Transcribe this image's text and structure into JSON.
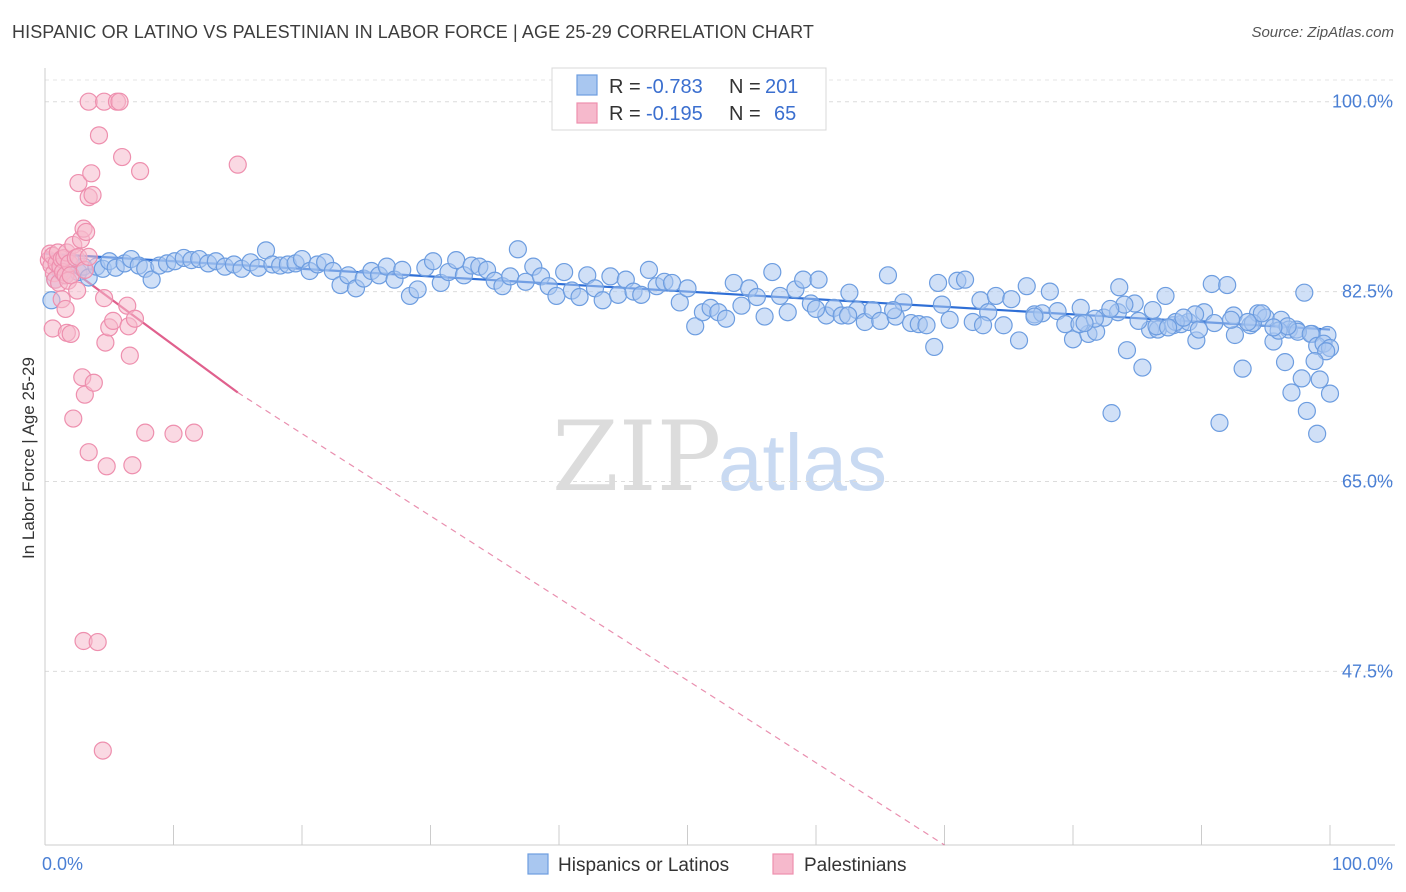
{
  "header": {
    "title": "HISPANIC OR LATINO VS PALESTINIAN IN LABOR FORCE | AGE 25-29 CORRELATION CHART",
    "source": "Source: ZipAtlas.com"
  },
  "watermark": {
    "zip": "ZIP",
    "atlas": "atlas"
  },
  "colors": {
    "blue_fill": "#a9c7f0",
    "blue_stroke": "#6d9de0",
    "blue_line": "#2f6fd6",
    "pink_fill": "#f6b9cc",
    "pink_stroke": "#ee8fae",
    "pink_line": "#e0608d"
  },
  "chart_data": {
    "type": "scatter",
    "title": "HISPANIC OR LATINO VS PALESTINIAN IN LABOR FORCE | AGE 25-29 CORRELATION CHART",
    "xlabel": "",
    "ylabel": "In Labor Force | Age 25-29",
    "xlim": [
      0,
      100
    ],
    "ylim": [
      31.5,
      102
    ],
    "x_tick_labels": [
      "0.0%",
      "100.0%"
    ],
    "y_ticks": [
      47.5,
      65.0,
      82.5,
      100.0
    ],
    "y_tick_labels": [
      "47.5%",
      "65.0%",
      "82.5%",
      "100.0%"
    ],
    "grid": true,
    "legend": {
      "placement": "top-center",
      "rows": [
        {
          "r_label": "R =",
          "r_value": "-0.783",
          "n_label": "N =",
          "n_value": "201"
        },
        {
          "r_label": "R =",
          "r_value": "-0.195",
          "n_label": "N =",
          "n_value": "65"
        }
      ]
    },
    "series": [
      {
        "name": "Hispanics or Latinos",
        "color": "#a9c7f0",
        "trend": {
          "x": [
            0,
            100
          ],
          "y": [
            86.0,
            79.0
          ]
        },
        "points": [
          [
            0.5,
            81.7
          ],
          [
            0.8,
            83.6
          ],
          [
            1.2,
            84.4
          ],
          [
            1.6,
            84.0
          ],
          [
            2.0,
            85.3
          ],
          [
            2.6,
            84.3
          ],
          [
            3.0,
            84.8
          ],
          [
            3.4,
            83.8
          ],
          [
            4.0,
            84.8
          ],
          [
            4.5,
            84.6
          ],
          [
            5.0,
            85.3
          ],
          [
            5.5,
            84.7
          ],
          [
            6.2,
            85.1
          ],
          [
            6.7,
            85.5
          ],
          [
            7.3,
            84.9
          ],
          [
            7.8,
            84.6
          ],
          [
            8.3,
            83.6
          ],
          [
            8.9,
            84.9
          ],
          [
            9.5,
            85.1
          ],
          [
            10.1,
            85.3
          ],
          [
            10.8,
            85.6
          ],
          [
            11.4,
            85.4
          ],
          [
            12.0,
            85.5
          ],
          [
            12.7,
            85.1
          ],
          [
            13.3,
            85.3
          ],
          [
            14.0,
            84.8
          ],
          [
            14.7,
            85.0
          ],
          [
            15.3,
            84.6
          ],
          [
            16.0,
            85.2
          ],
          [
            16.6,
            84.7
          ],
          [
            17.2,
            86.3
          ],
          [
            17.7,
            85.0
          ],
          [
            18.3,
            84.9
          ],
          [
            18.9,
            85.0
          ],
          [
            19.5,
            85.1
          ],
          [
            20.0,
            85.5
          ],
          [
            20.6,
            84.4
          ],
          [
            21.2,
            85.0
          ],
          [
            21.8,
            85.2
          ],
          [
            22.4,
            84.4
          ],
          [
            23.0,
            83.1
          ],
          [
            23.6,
            84.0
          ],
          [
            24.2,
            82.8
          ],
          [
            24.8,
            83.7
          ],
          [
            25.4,
            84.4
          ],
          [
            26.0,
            84.0
          ],
          [
            26.6,
            84.8
          ],
          [
            27.2,
            83.6
          ],
          [
            27.8,
            84.5
          ],
          [
            28.4,
            82.1
          ],
          [
            29.0,
            82.7
          ],
          [
            29.6,
            84.7
          ],
          [
            30.2,
            85.3
          ],
          [
            30.8,
            83.3
          ],
          [
            31.4,
            84.3
          ],
          [
            32.0,
            85.4
          ],
          [
            32.6,
            84.0
          ],
          [
            33.2,
            84.9
          ],
          [
            33.8,
            84.8
          ],
          [
            34.4,
            84.5
          ],
          [
            35.0,
            83.5
          ],
          [
            35.6,
            83.0
          ],
          [
            36.2,
            83.9
          ],
          [
            36.8,
            86.4
          ],
          [
            37.4,
            83.4
          ],
          [
            38.0,
            84.8
          ],
          [
            38.6,
            83.9
          ],
          [
            39.2,
            83.0
          ],
          [
            39.8,
            82.1
          ],
          [
            40.4,
            84.3
          ],
          [
            41.0,
            82.6
          ],
          [
            41.6,
            82.0
          ],
          [
            42.2,
            84.0
          ],
          [
            42.8,
            82.8
          ],
          [
            43.4,
            81.7
          ],
          [
            44.0,
            83.9
          ],
          [
            44.6,
            82.2
          ],
          [
            45.2,
            83.6
          ],
          [
            45.8,
            82.5
          ],
          [
            46.4,
            82.2
          ],
          [
            47.0,
            84.5
          ],
          [
            47.6,
            83.0
          ],
          [
            48.2,
            83.4
          ],
          [
            48.8,
            83.3
          ],
          [
            49.4,
            81.5
          ],
          [
            50.0,
            82.8
          ],
          [
            50.6,
            79.3
          ],
          [
            51.2,
            80.6
          ],
          [
            51.8,
            81.0
          ],
          [
            52.4,
            80.6
          ],
          [
            53.0,
            80.0
          ],
          [
            53.6,
            83.3
          ],
          [
            54.2,
            81.2
          ],
          [
            54.8,
            82.8
          ],
          [
            55.4,
            82.0
          ],
          [
            56.0,
            80.2
          ],
          [
            56.6,
            84.3
          ],
          [
            57.2,
            82.1
          ],
          [
            57.8,
            80.6
          ],
          [
            58.4,
            82.7
          ],
          [
            59.0,
            83.6
          ],
          [
            59.6,
            81.4
          ],
          [
            60.2,
            83.6
          ],
          [
            60.8,
            80.3
          ],
          [
            61.4,
            81.0
          ],
          [
            62.0,
            80.3
          ],
          [
            62.6,
            82.4
          ],
          [
            63.2,
            80.8
          ],
          [
            63.8,
            79.7
          ],
          [
            64.4,
            80.8
          ],
          [
            65.0,
            79.8
          ],
          [
            65.6,
            84.0
          ],
          [
            66.2,
            80.2
          ],
          [
            66.8,
            81.5
          ],
          [
            67.4,
            79.6
          ],
          [
            68.0,
            79.5
          ],
          [
            68.6,
            79.4
          ],
          [
            69.2,
            77.4
          ],
          [
            69.8,
            81.3
          ],
          [
            70.4,
            79.9
          ],
          [
            71.0,
            83.5
          ],
          [
            71.6,
            83.6
          ],
          [
            72.2,
            79.7
          ],
          [
            72.8,
            81.7
          ],
          [
            73.4,
            80.6
          ],
          [
            74.0,
            82.1
          ],
          [
            74.6,
            79.4
          ],
          [
            75.2,
            81.8
          ],
          [
            75.8,
            78.0
          ],
          [
            76.4,
            83.0
          ],
          [
            77.0,
            80.4
          ],
          [
            77.6,
            80.5
          ],
          [
            78.2,
            82.5
          ],
          [
            78.8,
            80.7
          ],
          [
            79.4,
            79.5
          ],
          [
            80.0,
            78.1
          ],
          [
            80.6,
            81.0
          ],
          [
            81.2,
            78.6
          ],
          [
            81.8,
            78.8
          ],
          [
            82.4,
            80.1
          ],
          [
            83.0,
            71.3
          ],
          [
            83.6,
            82.9
          ],
          [
            84.2,
            77.1
          ],
          [
            84.8,
            81.4
          ],
          [
            85.4,
            75.5
          ],
          [
            86.0,
            79.0
          ],
          [
            86.6,
            79.0
          ],
          [
            87.2,
            82.1
          ],
          [
            87.8,
            79.4
          ],
          [
            88.4,
            79.5
          ],
          [
            89.0,
            79.7
          ],
          [
            89.6,
            78.0
          ],
          [
            90.2,
            80.6
          ],
          [
            90.8,
            83.2
          ],
          [
            91.4,
            70.4
          ],
          [
            92.0,
            83.1
          ],
          [
            92.6,
            78.5
          ],
          [
            93.2,
            75.4
          ],
          [
            93.8,
            79.4
          ],
          [
            94.4,
            80.5
          ],
          [
            95.0,
            80.1
          ],
          [
            95.6,
            77.9
          ],
          [
            96.2,
            79.9
          ],
          [
            96.8,
            79.0
          ],
          [
            97.4,
            79.0
          ],
          [
            98.0,
            82.4
          ],
          [
            98.6,
            78.6
          ],
          [
            99.2,
            74.4
          ],
          [
            99.8,
            78.5
          ],
          [
            100.0,
            73.1
          ],
          [
            60.0,
            80.9
          ],
          [
            62.5,
            80.3
          ],
          [
            66.0,
            80.8
          ],
          [
            69.5,
            83.3
          ],
          [
            73.0,
            79.4
          ],
          [
            77.0,
            80.2
          ],
          [
            80.5,
            79.5
          ],
          [
            83.5,
            80.6
          ],
          [
            86.5,
            79.3
          ],
          [
            88.0,
            79.7
          ],
          [
            89.5,
            80.4
          ],
          [
            92.5,
            80.3
          ],
          [
            94.0,
            79.6
          ],
          [
            96.0,
            78.9
          ],
          [
            97.5,
            78.8
          ],
          [
            98.5,
            78.6
          ],
          [
            99.0,
            77.5
          ],
          [
            99.5,
            77.7
          ],
          [
            96.5,
            76.0
          ],
          [
            97.0,
            73.2
          ],
          [
            98.2,
            71.5
          ],
          [
            99.0,
            69.4
          ],
          [
            100.0,
            77.3
          ],
          [
            99.7,
            77.0
          ],
          [
            98.8,
            76.1
          ],
          [
            97.8,
            74.5
          ],
          [
            96.7,
            79.3
          ],
          [
            95.6,
            79.2
          ],
          [
            94.7,
            80.5
          ],
          [
            93.6,
            79.7
          ],
          [
            92.3,
            79.9
          ],
          [
            91.0,
            79.6
          ],
          [
            89.8,
            79.0
          ],
          [
            88.6,
            80.1
          ],
          [
            87.4,
            79.2
          ],
          [
            86.2,
            80.8
          ],
          [
            85.1,
            79.8
          ],
          [
            84.0,
            81.3
          ],
          [
            82.9,
            80.9
          ],
          [
            81.7,
            80.0
          ],
          [
            80.9,
            79.6
          ]
        ]
      },
      {
        "name": "Palestinians",
        "color": "#f6b9cc",
        "trend": {
          "x": [
            0,
            15
          ],
          "y": [
            86.3,
            73.2
          ]
        },
        "trend_extension": {
          "x": [
            15,
            70
          ],
          "y": [
            73.2,
            31.5
          ]
        },
        "points": [
          [
            0.3,
            85.4
          ],
          [
            0.4,
            86.0
          ],
          [
            0.5,
            84.9
          ],
          [
            0.6,
            85.8
          ],
          [
            0.7,
            84.2
          ],
          [
            0.8,
            83.6
          ],
          [
            0.9,
            85.1
          ],
          [
            1.0,
            86.1
          ],
          [
            1.1,
            83.3
          ],
          [
            1.2,
            84.8
          ],
          [
            1.3,
            85.5
          ],
          [
            1.4,
            84.3
          ],
          [
            1.5,
            85.6
          ],
          [
            1.6,
            84.0
          ],
          [
            1.7,
            86.1
          ],
          [
            1.8,
            83.5
          ],
          [
            1.9,
            85.1
          ],
          [
            2.0,
            84.0
          ],
          [
            2.2,
            86.8
          ],
          [
            2.4,
            85.6
          ],
          [
            2.5,
            82.6
          ],
          [
            2.6,
            85.7
          ],
          [
            2.8,
            87.3
          ],
          [
            3.0,
            88.3
          ],
          [
            3.1,
            84.5
          ],
          [
            3.2,
            88.0
          ],
          [
            3.4,
            85.7
          ],
          [
            0.6,
            79.1
          ],
          [
            1.3,
            81.8
          ],
          [
            1.6,
            80.9
          ],
          [
            1.7,
            78.7
          ],
          [
            2.0,
            78.6
          ],
          [
            2.2,
            70.8
          ],
          [
            2.6,
            92.5
          ],
          [
            2.9,
            74.6
          ],
          [
            3.1,
            73.0
          ],
          [
            3.4,
            91.2
          ],
          [
            3.6,
            93.4
          ],
          [
            3.7,
            91.4
          ],
          [
            3.8,
            74.1
          ],
          [
            3.4,
            67.7
          ],
          [
            4.2,
            96.9
          ],
          [
            4.6,
            81.9
          ],
          [
            4.7,
            77.8
          ],
          [
            4.8,
            66.4
          ],
          [
            5.0,
            79.2
          ],
          [
            5.3,
            79.8
          ],
          [
            6.0,
            94.9
          ],
          [
            6.4,
            81.2
          ],
          [
            6.5,
            79.3
          ],
          [
            6.6,
            76.6
          ],
          [
            6.8,
            66.5
          ],
          [
            7.0,
            80.0
          ],
          [
            7.4,
            93.6
          ],
          [
            7.8,
            69.5
          ],
          [
            10.0,
            69.4
          ],
          [
            11.6,
            69.5
          ],
          [
            15.0,
            94.2
          ],
          [
            3.4,
            100.0
          ],
          [
            4.6,
            100.0
          ],
          [
            5.6,
            100.0
          ],
          [
            5.8,
            100.0
          ],
          [
            3.0,
            50.3
          ],
          [
            4.1,
            50.2
          ],
          [
            4.5,
            40.2
          ]
        ]
      }
    ]
  },
  "bottom_legend": {
    "items": [
      {
        "label": "Hispanics or Latinos"
      },
      {
        "label": "Palestinians"
      }
    ]
  }
}
